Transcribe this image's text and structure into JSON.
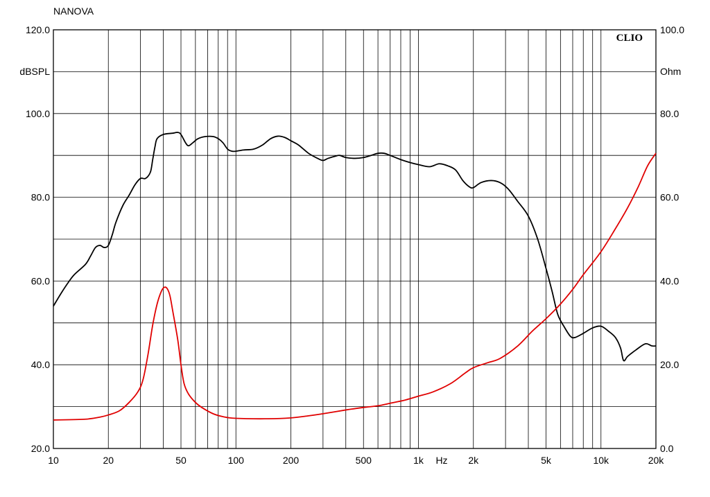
{
  "chart_data": {
    "type": "line",
    "title": "NANOVA",
    "brand": "CLIO",
    "xunit": "Hz",
    "xscale": "log",
    "xlim": [
      10,
      20000
    ],
    "grid": true,
    "y_left": {
      "unit": "dBSPL",
      "lim": [
        20,
        120
      ],
      "ticks": [
        "20.0",
        "40.0",
        "60.0",
        "80.0",
        "100.0",
        "120.0"
      ]
    },
    "y_right": {
      "unit": "Ohm",
      "lim": [
        0,
        100
      ],
      "ticks": [
        "0.0",
        "20.0",
        "40.0",
        "60.0",
        "80.0",
        "100.0"
      ]
    },
    "x_tick_labels": [
      {
        "v": 10,
        "t": "10"
      },
      {
        "v": 20,
        "t": "20"
      },
      {
        "v": 50,
        "t": "50"
      },
      {
        "v": 100,
        "t": "100"
      },
      {
        "v": 200,
        "t": "200"
      },
      {
        "v": 500,
        "t": "500"
      },
      {
        "v": 1000,
        "t": "1k"
      },
      {
        "v": 2000,
        "t": "2k"
      },
      {
        "v": 5000,
        "t": "5k"
      },
      {
        "v": 10000,
        "t": "10k"
      },
      {
        "v": 20000,
        "t": "20k"
      }
    ],
    "series": [
      {
        "color": "#000000",
        "axis": "left",
        "points": [
          [
            10,
            54
          ],
          [
            11,
            57
          ],
          [
            12,
            59.5
          ],
          [
            13,
            61.5
          ],
          [
            15,
            64
          ],
          [
            16,
            66
          ],
          [
            17,
            68
          ],
          [
            18,
            68.5
          ],
          [
            19,
            68
          ],
          [
            20,
            68.5
          ],
          [
            21,
            71
          ],
          [
            22,
            74
          ],
          [
            24,
            78
          ],
          [
            26,
            80.5
          ],
          [
            28,
            83
          ],
          [
            30,
            84.5
          ],
          [
            32,
            84.5
          ],
          [
            34,
            86
          ],
          [
            35,
            89
          ],
          [
            36,
            92
          ],
          [
            37,
            94
          ],
          [
            40,
            95
          ],
          [
            45,
            95.3
          ],
          [
            48,
            95.5
          ],
          [
            50,
            95
          ],
          [
            53,
            93
          ],
          [
            55,
            92.3
          ],
          [
            58,
            93
          ],
          [
            62,
            94
          ],
          [
            68,
            94.5
          ],
          [
            75,
            94.5
          ],
          [
            80,
            94
          ],
          [
            85,
            93
          ],
          [
            90,
            91.5
          ],
          [
            95,
            91
          ],
          [
            100,
            91
          ],
          [
            110,
            91.3
          ],
          [
            125,
            91.5
          ],
          [
            140,
            92.5
          ],
          [
            155,
            94
          ],
          [
            170,
            94.6
          ],
          [
            185,
            94.3
          ],
          [
            200,
            93.5
          ],
          [
            220,
            92.5
          ],
          [
            250,
            90.5
          ],
          [
            280,
            89.3
          ],
          [
            300,
            88.8
          ],
          [
            320,
            89.3
          ],
          [
            350,
            89.8
          ],
          [
            370,
            90
          ],
          [
            400,
            89.5
          ],
          [
            450,
            89.3
          ],
          [
            500,
            89.5
          ],
          [
            550,
            90
          ],
          [
            600,
            90.5
          ],
          [
            650,
            90.5
          ],
          [
            700,
            90
          ],
          [
            800,
            89
          ],
          [
            900,
            88.3
          ],
          [
            1000,
            87.8
          ],
          [
            1150,
            87.3
          ],
          [
            1300,
            88
          ],
          [
            1450,
            87.5
          ],
          [
            1600,
            86.5
          ],
          [
            1750,
            84
          ],
          [
            1900,
            82.5
          ],
          [
            2000,
            82.3
          ],
          [
            2200,
            83.5
          ],
          [
            2500,
            84
          ],
          [
            2800,
            83.5
          ],
          [
            3100,
            82
          ],
          [
            3500,
            79
          ],
          [
            4000,
            75.5
          ],
          [
            4500,
            70
          ],
          [
            5000,
            63
          ],
          [
            5400,
            57.5
          ],
          [
            5800,
            52
          ],
          [
            6300,
            49
          ],
          [
            6800,
            46.8
          ],
          [
            7200,
            46.5
          ],
          [
            8000,
            47.5
          ],
          [
            9000,
            48.8
          ],
          [
            10000,
            49.2
          ],
          [
            11000,
            48
          ],
          [
            12000,
            46.5
          ],
          [
            12800,
            44
          ],
          [
            13300,
            41
          ],
          [
            14000,
            42
          ],
          [
            15500,
            43.5
          ],
          [
            17500,
            45
          ],
          [
            19000,
            44.5
          ],
          [
            20000,
            44.5
          ]
        ]
      },
      {
        "color": "#e00000",
        "axis": "right",
        "points": [
          [
            10,
            6.8
          ],
          [
            15,
            7
          ],
          [
            18,
            7.5
          ],
          [
            20,
            8
          ],
          [
            23,
            9
          ],
          [
            26,
            11
          ],
          [
            29,
            13.5
          ],
          [
            31,
            16.5
          ],
          [
            33,
            22.5
          ],
          [
            35,
            29.5
          ],
          [
            37,
            34.5
          ],
          [
            39,
            37.5
          ],
          [
            40.5,
            38.5
          ],
          [
            42,
            38.2
          ],
          [
            43.5,
            36.5
          ],
          [
            45,
            33
          ],
          [
            48,
            26
          ],
          [
            50,
            20
          ],
          [
            52,
            15.5
          ],
          [
            55,
            13
          ],
          [
            60,
            11
          ],
          [
            65,
            9.8
          ],
          [
            75,
            8.3
          ],
          [
            85,
            7.6
          ],
          [
            100,
            7.2
          ],
          [
            150,
            7.1
          ],
          [
            200,
            7.3
          ],
          [
            250,
            7.8
          ],
          [
            300,
            8.3
          ],
          [
            400,
            9.2
          ],
          [
            500,
            9.8
          ],
          [
            600,
            10.2
          ],
          [
            700,
            10.8
          ],
          [
            850,
            11.6
          ],
          [
            1000,
            12.5
          ],
          [
            1200,
            13.5
          ],
          [
            1500,
            15.5
          ],
          [
            1800,
            18
          ],
          [
            2000,
            19.3
          ],
          [
            2400,
            20.5
          ],
          [
            2800,
            21.5
          ],
          [
            3500,
            24.5
          ],
          [
            4200,
            28
          ],
          [
            5000,
            31
          ],
          [
            6000,
            34.5
          ],
          [
            7000,
            38
          ],
          [
            8000,
            41.5
          ],
          [
            10000,
            47
          ],
          [
            12000,
            52.5
          ],
          [
            14000,
            57.5
          ],
          [
            16000,
            62.5
          ],
          [
            18000,
            67.5
          ],
          [
            20000,
            70.5
          ]
        ]
      }
    ]
  }
}
